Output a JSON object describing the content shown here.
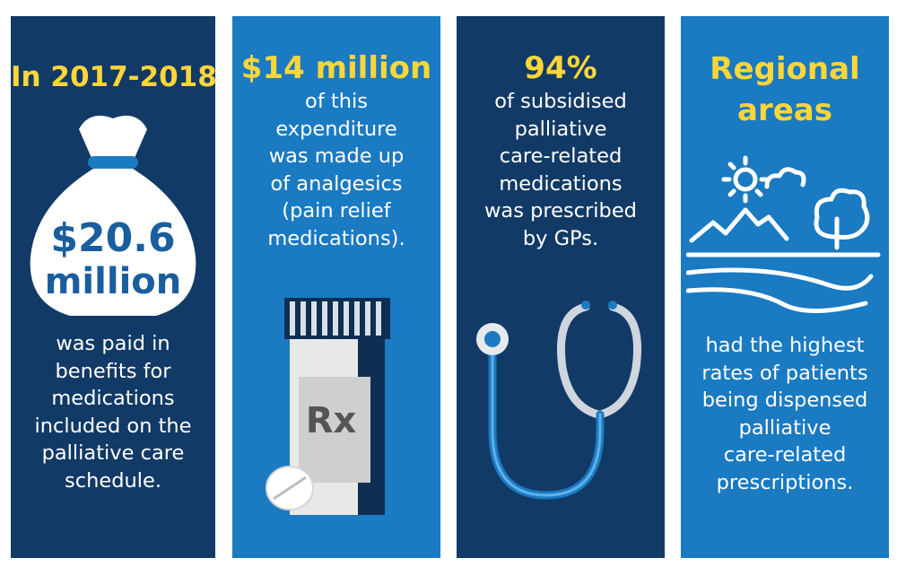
{
  "colors": {
    "dark_panel": "#123a66",
    "light_panel": "#1a7ac2",
    "highlight": "#ffd63a",
    "text": "#ffffff"
  },
  "panels": [
    {
      "headline": "In 2017-2018,",
      "bag_amount": "$20.6",
      "bag_unit": "million",
      "body": "was paid in\nbenefits for\nmedications\nincluded on the\npalliative care\nschedule.",
      "icon": "money-bag-icon"
    },
    {
      "headline": "$14 million",
      "body": "of this\nexpenditure\nwas made up\nof analgesics\n(pain relief\nmedications).",
      "bottle_label": "Rx",
      "icon": "prescription-bottle-icon"
    },
    {
      "headline": "94%",
      "body": "of subsidised\npalliative\ncare-related\nmedications\nwas prescribed\nby GPs.",
      "icon": "stethoscope-icon"
    },
    {
      "headline": "Regional\nareas",
      "headline_line1": "Regional",
      "headline_line2": "areas",
      "body": "had the highest\nrates of patients\nbeing dispensed\npalliative\ncare-related\nprescriptions.",
      "icon": "rural-landscape-icon"
    }
  ]
}
